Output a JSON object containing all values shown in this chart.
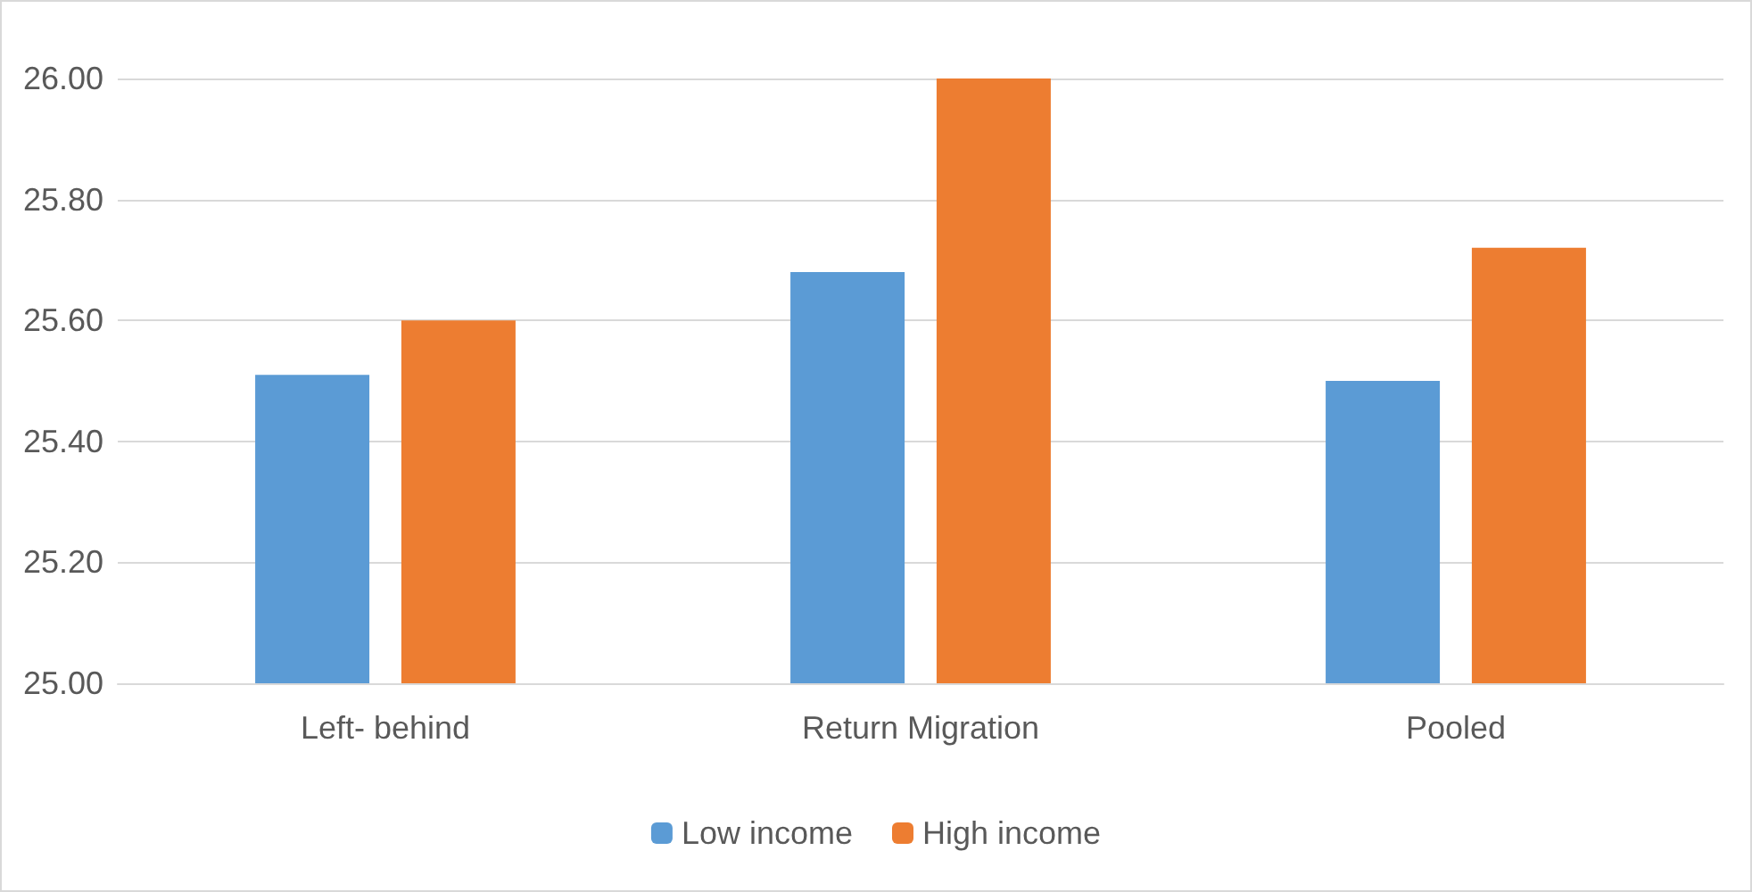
{
  "chart_data": {
    "type": "bar",
    "categories": [
      "Left- behind",
      "Return Migration",
      "Pooled"
    ],
    "series": [
      {
        "name": "Low income",
        "color": "#5b9bd5",
        "values": [
          25.51,
          25.68,
          25.5
        ]
      },
      {
        "name": "High income",
        "color": "#ed7d31",
        "values": [
          25.6,
          26.0,
          25.72
        ]
      }
    ],
    "ylim": [
      25,
      26
    ],
    "yticks": [
      {
        "value": 25,
        "label": "25.00"
      },
      {
        "value": 25.2,
        "label": "25.20"
      },
      {
        "value": 25.4,
        "label": "25.40"
      },
      {
        "value": 25.6,
        "label": "25.60"
      },
      {
        "value": 25.8,
        "label": "25.80"
      },
      {
        "value": 26,
        "label": "26.00"
      }
    ],
    "grid": "y",
    "legend": "bottom"
  }
}
